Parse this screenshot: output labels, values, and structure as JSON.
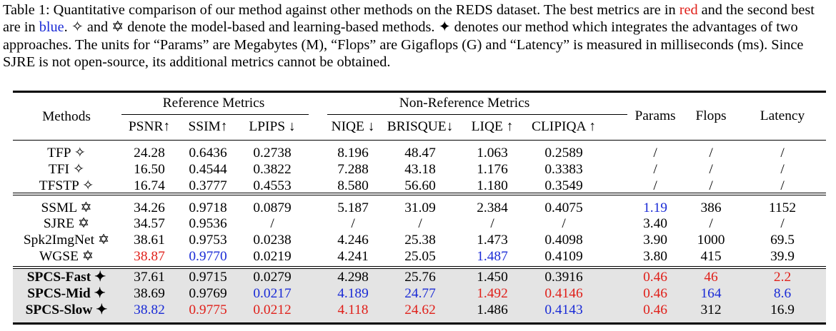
{
  "caption": {
    "p1": "Table 1: Quantitative comparison of our method against other methods on the REDS dataset. The best metrics are in ",
    "red_word": "red",
    "p2": " and the second best are in ",
    "blue_word": "blue",
    "p3": ". ✧ and ✡ denote the model-based and learning-based methods. ✦ denotes our method which integrates the advantages of two approaches. The units for “Params” are Megabytes (M), “Flops” are Gigaflops (G) and “Latency” is measured in milliseconds (ms). Since SJRE is not open-source, its additional metrics cannot be obtained."
  },
  "headers": {
    "methods": "Methods",
    "reference_group": "Reference Metrics",
    "nonreference_group": "Non-Reference Metrics",
    "params": "Params",
    "flops": "Flops",
    "latency": "Latency",
    "psnr": "PSNR↑",
    "ssim": "SSIM↑",
    "lpips": "LPIPS ↓",
    "niqe": "NIQE ↓",
    "brisque": "BRISQUE↓",
    "liqe": "LIQE ↑",
    "clipiqa": "CLIPIQA ↑"
  },
  "colors": {
    "best": "#e0201a",
    "second": "#1a2bd6",
    "shade": "#e4e4e4"
  },
  "rows": [
    {
      "method": "TFP ✧",
      "cells": [
        "24.28",
        "0.6436",
        "0.2738",
        "8.196",
        "48.47",
        "1.063",
        "0.2589",
        "/",
        "/",
        "/"
      ]
    },
    {
      "method": "TFI ✧",
      "cells": [
        "16.50",
        "0.4544",
        "0.3822",
        "7.288",
        "43.18",
        "1.176",
        "0.3383",
        "/",
        "/",
        "/"
      ]
    },
    {
      "method": "TFSTP ✧",
      "cells": [
        "16.74",
        "0.3777",
        "0.4553",
        "8.580",
        "56.60",
        "1.180",
        "0.3549",
        "/",
        "/",
        "/"
      ]
    },
    {
      "method": "SSML ✡",
      "cells": [
        "34.26",
        "0.9718",
        "0.0879",
        "5.187",
        "31.09",
        "2.384",
        "0.4075",
        "1.19",
        "386",
        "1152"
      ]
    },
    {
      "method": "SJRE ✡",
      "cells": [
        "34.57",
        "0.9536",
        "/",
        "/",
        "/",
        "/",
        "/",
        "3.40",
        "/",
        "/"
      ]
    },
    {
      "method": "Spk2ImgNet ✡",
      "cells": [
        "38.61",
        "0.9753",
        "0.0238",
        "4.246",
        "25.38",
        "1.473",
        "0.4098",
        "3.90",
        "1000",
        "69.5"
      ]
    },
    {
      "method": "WGSE ✡",
      "cells": [
        "38.87",
        "0.9770",
        "0.0219",
        "4.241",
        "25.05",
        "1.487",
        "0.4109",
        "3.80",
        "415",
        "39.9"
      ]
    },
    {
      "method": "SPCS-Fast ✦",
      "cells": [
        "37.61",
        "0.9715",
        "0.0279",
        "4.298",
        "25.76",
        "1.450",
        "0.3916",
        "0.46",
        "46",
        "2.2"
      ]
    },
    {
      "method": "SPCS-Mid ✦",
      "cells": [
        "38.69",
        "0.9769",
        "0.0217",
        "4.189",
        "24.77",
        "1.492",
        "0.4146",
        "0.46",
        "164",
        "8.6"
      ]
    },
    {
      "method": "SPCS-Slow ✦",
      "cells": [
        "38.82",
        "0.9775",
        "0.0212",
        "4.118",
        "24.62",
        "1.486",
        "0.4143",
        "0.46",
        "312",
        "16.9"
      ]
    }
  ]
}
